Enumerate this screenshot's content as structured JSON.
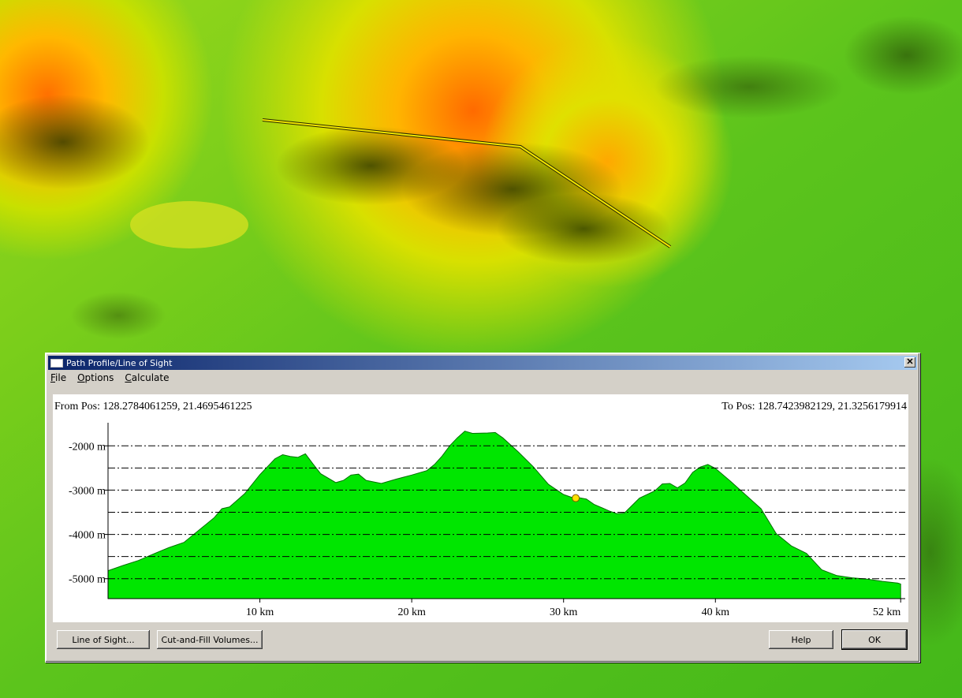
{
  "window": {
    "title": "Path Profile/Line of Sight",
    "close_glyph": "✕"
  },
  "menu": [
    {
      "label": "File",
      "mnemonic": "F"
    },
    {
      "label": "Options",
      "mnemonic": "O"
    },
    {
      "label": "Calculate",
      "mnemonic": "C"
    }
  ],
  "profile": {
    "from_label": "From Pos: 128.2784061259, 21.4695461225",
    "to_label": "To Pos: 128.7423982129, 21.3256179914"
  },
  "buttons": {
    "line_of_sight": "Line of Sight...",
    "cut_fill": "Cut-and-Fill Volumes...",
    "help": "Help",
    "ok": "OK"
  },
  "colors": {
    "fill": "#00e600",
    "marker": "#ffe000",
    "path_line": "#f2e600"
  },
  "chart_data": {
    "type": "area",
    "xlabel": "",
    "ylabel": "",
    "xlim": [
      0,
      52.5
    ],
    "ylim": [
      -5450,
      -1550
    ],
    "x_ticks": [
      {
        "v": 10,
        "label": "10 km"
      },
      {
        "v": 20,
        "label": "20 km"
      },
      {
        "v": 30,
        "label": "30 km"
      },
      {
        "v": 40,
        "label": "40 km"
      },
      {
        "v": 52.2,
        "label": "52 km"
      }
    ],
    "y_ticks": [
      {
        "v": -2000,
        "label": "-2000 m"
      },
      {
        "v": -3000,
        "label": "-3000 m"
      },
      {
        "v": -4000,
        "label": "-4000 m"
      },
      {
        "v": -5000,
        "label": "-5000 m"
      }
    ],
    "dashed_levels": [
      -2000,
      -2500,
      -3000,
      -3500,
      -4000,
      -4500,
      -5000
    ],
    "marker": {
      "x": 30.8,
      "y": -3180
    },
    "x": [
      0,
      1,
      2,
      3,
      4,
      5,
      6,
      6.5,
      7,
      7.5,
      8,
      9,
      10,
      11,
      11.5,
      12,
      12.5,
      13,
      13.5,
      14,
      15,
      15.5,
      16,
      16.5,
      17,
      18,
      19,
      20,
      21,
      21.5,
      22,
      22.5,
      23,
      23.5,
      24,
      25,
      25.5,
      26,
      27,
      28,
      29,
      30,
      30.5,
      31,
      31.5,
      32,
      33,
      33.5,
      34,
      35,
      36,
      36.5,
      37,
      37.5,
      38,
      38.5,
      39,
      39.5,
      40,
      41,
      42,
      43,
      44,
      45,
      46,
      47,
      48,
      49,
      50,
      51,
      52,
      52.2
    ],
    "values": [
      -4820,
      -4700,
      -4590,
      -4440,
      -4300,
      -4180,
      -3900,
      -3760,
      -3620,
      -3420,
      -3380,
      -3080,
      -2650,
      -2290,
      -2200,
      -2240,
      -2260,
      -2180,
      -2410,
      -2630,
      -2830,
      -2780,
      -2660,
      -2640,
      -2780,
      -2850,
      -2750,
      -2660,
      -2560,
      -2420,
      -2230,
      -2000,
      -1820,
      -1670,
      -1720,
      -1710,
      -1700,
      -1820,
      -2130,
      -2470,
      -2870,
      -3100,
      -3160,
      -3170,
      -3200,
      -3320,
      -3470,
      -3530,
      -3520,
      -3180,
      -3020,
      -2860,
      -2850,
      -2950,
      -2840,
      -2600,
      -2480,
      -2420,
      -2510,
      -2800,
      -3110,
      -3420,
      -3980,
      -4260,
      -4430,
      -4800,
      -4930,
      -4980,
      -5010,
      -5060,
      -5100,
      -5120
    ]
  }
}
